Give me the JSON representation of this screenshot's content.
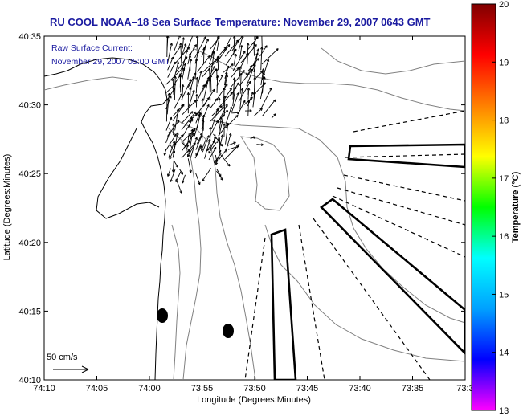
{
  "title": "RU COOL  NOAA–18  Sea Surface Temperature:  November 29, 2007 0643 GMT",
  "inset": {
    "line1": "Raw Surface Current:",
    "line2": "November 29, 2007 05:00 GMT"
  },
  "scale": {
    "label": "50 cm/s"
  },
  "axes": {
    "xlabel": "Longitude (Degrees:Minutes)",
    "ylabel": "Latitude (Degrees:Minutes)",
    "xticks": [
      "74:10",
      "74:05",
      "74:00",
      "73:55",
      "73:50",
      "73:45",
      "73:40",
      "73:35",
      "73:3"
    ],
    "yticks": [
      "40:35",
      "40:30",
      "40:25",
      "40:20",
      "40:15",
      "40:10"
    ]
  },
  "colorbar": {
    "label": "Temperature (°C)",
    "ticks": [
      "20",
      "19",
      "18",
      "17",
      "16",
      "15",
      "14",
      "13"
    ],
    "range": [
      13,
      20
    ],
    "stops": [
      "#ff00ff",
      "#0000ff",
      "#00a0ff",
      "#00ffff",
      "#00ff00",
      "#ffff00",
      "#ff8000",
      "#ff0000",
      "#800000"
    ]
  },
  "chart_data": {
    "type": "map",
    "xlabel": "Longitude (Degrees:Minutes)",
    "ylabel": "Latitude (Degrees:Minutes)",
    "xlim": [
      "74:10",
      "73:30"
    ],
    "ylim": [
      "40:10",
      "40:35"
    ],
    "colorbar_range": [
      13,
      20
    ],
    "colorbar_label": "Temperature (°C)",
    "vector_scale": "50 cm/s"
  }
}
